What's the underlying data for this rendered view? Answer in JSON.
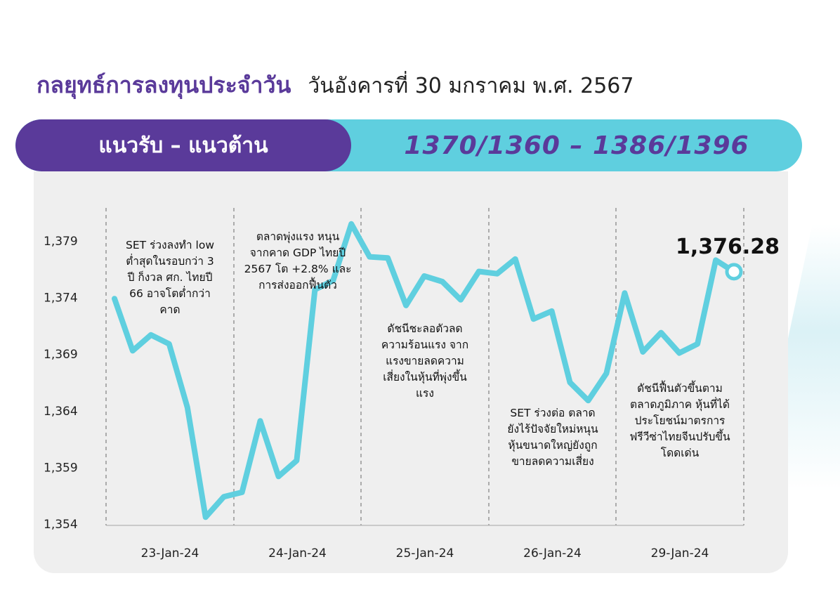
{
  "header": {
    "title": "กลยุทธ์การลงทุนประจำวัน",
    "date": "วันอังคารที่ 30 มกราคม พ.ศ. 2567"
  },
  "banner": {
    "label": "แนวรับ – แนวต้าน",
    "value": "1370/1360 – 1386/1396"
  },
  "colors": {
    "brand_purple": "#5a3a9a",
    "accent_cyan": "#5fcfdf",
    "line": "#5fcfdf",
    "panel": "#efefef"
  },
  "chart_data": {
    "type": "line",
    "y_ticks": [
      "1,354",
      "1,359",
      "1,364",
      "1,369",
      "1,374",
      "1,379"
    ],
    "ylim": [
      1354,
      1379
    ],
    "x_tick_labels": [
      "23-Jan-24",
      "24-Jan-24",
      "25-Jan-24",
      "26-Jan-24",
      "29-Jan-24"
    ],
    "last_value_label": "1,376.28",
    "series": [
      {
        "values": [
          1373.9,
          1369.3,
          1370.7,
          1369.9,
          1364.3,
          1354.6,
          1356.4,
          1356.8,
          1363.1,
          1358.2,
          1359.6,
          1374.7,
          1375.5,
          1380.5,
          1377.6,
          1377.5,
          1373.3,
          1375.9,
          1375.4,
          1373.8,
          1376.3,
          1376.1,
          1377.4,
          1372.1,
          1372.8,
          1366.5,
          1364.9,
          1367.3,
          1374.4,
          1369.2,
          1370.9,
          1369.1,
          1369.9,
          1377.3,
          1376.28
        ]
      }
    ],
    "annotations": [
      "SET ร่วงลงทำ low ต่ำสุดในรอบกว่า 3 ปี ก็งวล ศก. ไทยปี 66 อาจโตต่ำกว่าคาด",
      "ตลาดพุ่งแรง หนุนจากคาด GDP ไทยปี 2567 โต +2.8% และการส่งออกฟื้นตัว",
      "ดัชนีชะลอตัวลด ความร้อนแรง จาก แรงขายลดความ เสี่ยงในหุ้นที่พุ่งขึ้น แรง",
      "SET ร่วงต่อ ตลาด ยังไร้ปัจจัยใหม่หนุน หุ้นขนาดใหญ่ยังถูก ขายลดความเสี่ยง",
      "ดัชนีฟื้นตัวขึ้นตาม ตลาดภูมิภาค หุ้นที่ได้ ประโยชน์มาตรการ ฟรีวีซ่าไทยจีนปรับขึ้น โดดเด่น"
    ],
    "annotation_lines": [
      [
        "SET ร่วงลงทำ low",
        "ต่ำสุดในรอบกว่า 3",
        "ปี ก็งวล ศก. ไทยปี",
        "66 อาจโตต่ำกว่า",
        "คาด"
      ],
      [
        "ตลาดพุ่งแรง หนุน",
        "จากคาด GDP ไทยปี",
        "2567 โต +2.8% และ",
        "การส่งออกฟื้นตัว"
      ],
      [
        "ดัชนีชะลอตัวลด",
        "ความร้อนแรง จาก",
        "แรงขายลดความ",
        "เสี่ยงในหุ้นที่พุ่งขึ้น",
        "แรง"
      ],
      [
        "SET ร่วงต่อ ตลาด",
        "ยังไร้ปัจจัยใหม่หนุน",
        "หุ้นขนาดใหญ่ยังถูก",
        "ขายลดความเสี่ยง"
      ],
      [
        "ดัชนีฟื้นตัวขึ้นตาม",
        "ตลาดภูมิภาค หุ้นที่ได้",
        "ประโยชน์มาตรการ",
        "ฟรีวีซ่าไทยจีนปรับขึ้น",
        "โดดเด่น"
      ]
    ],
    "grid": "vertical dashed separators between days",
    "legend": "none"
  }
}
